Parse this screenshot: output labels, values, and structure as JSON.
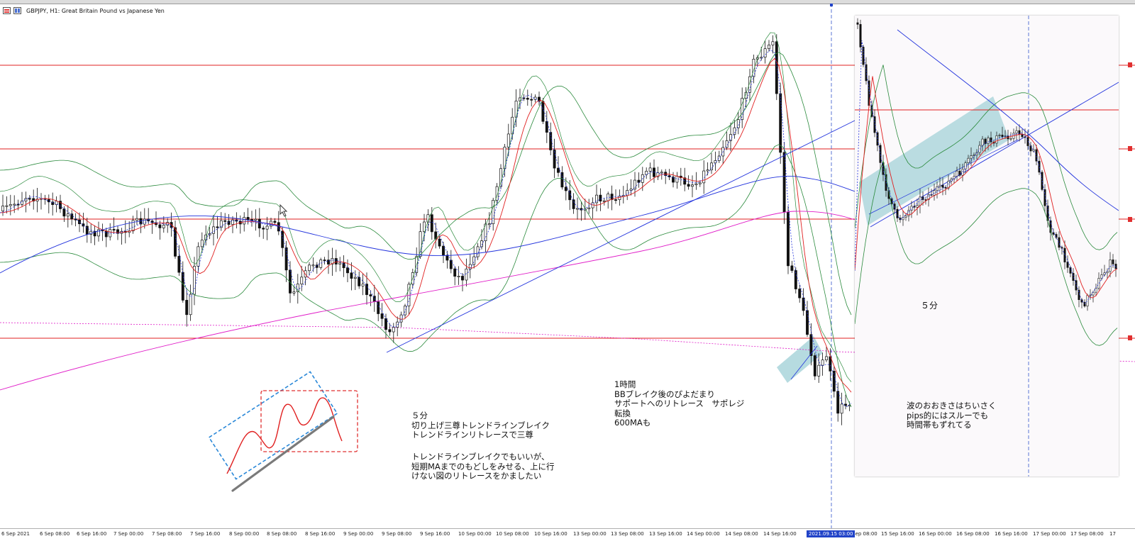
{
  "title": {
    "symbol_line": "GBPJPY, H1:  Great Britain Pound vs Japanese Yen",
    "icons": [
      "chart-bars-icon",
      "chart-tile-icon"
    ]
  },
  "colors": {
    "support_line": "#e02020",
    "bb": "#2a8a3c",
    "ma_short": "#e02020",
    "ma_mid": "#2233dd",
    "ma_long": "#e01cc8",
    "dotted_ma": "#2233dd",
    "trendline": "#2233dd",
    "highlight": "#8fc8d0"
  },
  "x_axis": {
    "labels": [
      "6 Sep 2021",
      "6 Sep 08:00",
      "6 Sep 16:00",
      "7 Sep 00:00",
      "7 Sep 08:00",
      "7 Sep 16:00",
      "8 Sep 00:00",
      "8 Sep 08:00",
      "8 Sep 16:00",
      "9 Sep 00:00",
      "9 Sep 08:00",
      "9 Sep 16:00",
      "10 Sep 00:00",
      "10 Sep 08:00",
      "10 Sep 16:00",
      "13 Sep 00:00",
      "13 Sep 08:00",
      "13 Sep 16:00",
      "14 Sep 00:00",
      "14 Sep 08:00",
      "14 Sep 16:00",
      "15 Sep 08:00",
      "15 Sep 16:00",
      "16 Sep 00:00",
      "16 Sep 08:00",
      "16 Sep 16:00",
      "17 Sep 00:00",
      "17 Sep 08:00",
      "17"
    ],
    "cursor_time": "2021.09.15 03:00"
  },
  "annotations": {
    "note_5min_left": "５分\n切り上げ三尊トレンドラインブレイク\nトレンドラインリトレースで三尊",
    "note_5min_left_b": "トレンドラインブレイクでもいいが、\n短期MAまでのもどしをみせる、上に行\nけない図のリトレースをかましたい",
    "note_1h": "1時間\nBBブレイク後のぴよだまり\nサポートへのリトレース　サポレジ\n転換\n600MAも",
    "note_5min_right": "波のおおきさはちいさく\npips的にはスルーでも\n時間帯もずれてる",
    "inset_label": "５分"
  },
  "legend_markers": [
    "support-marker",
    "support-marker",
    "support-marker",
    "support-marker"
  ]
}
